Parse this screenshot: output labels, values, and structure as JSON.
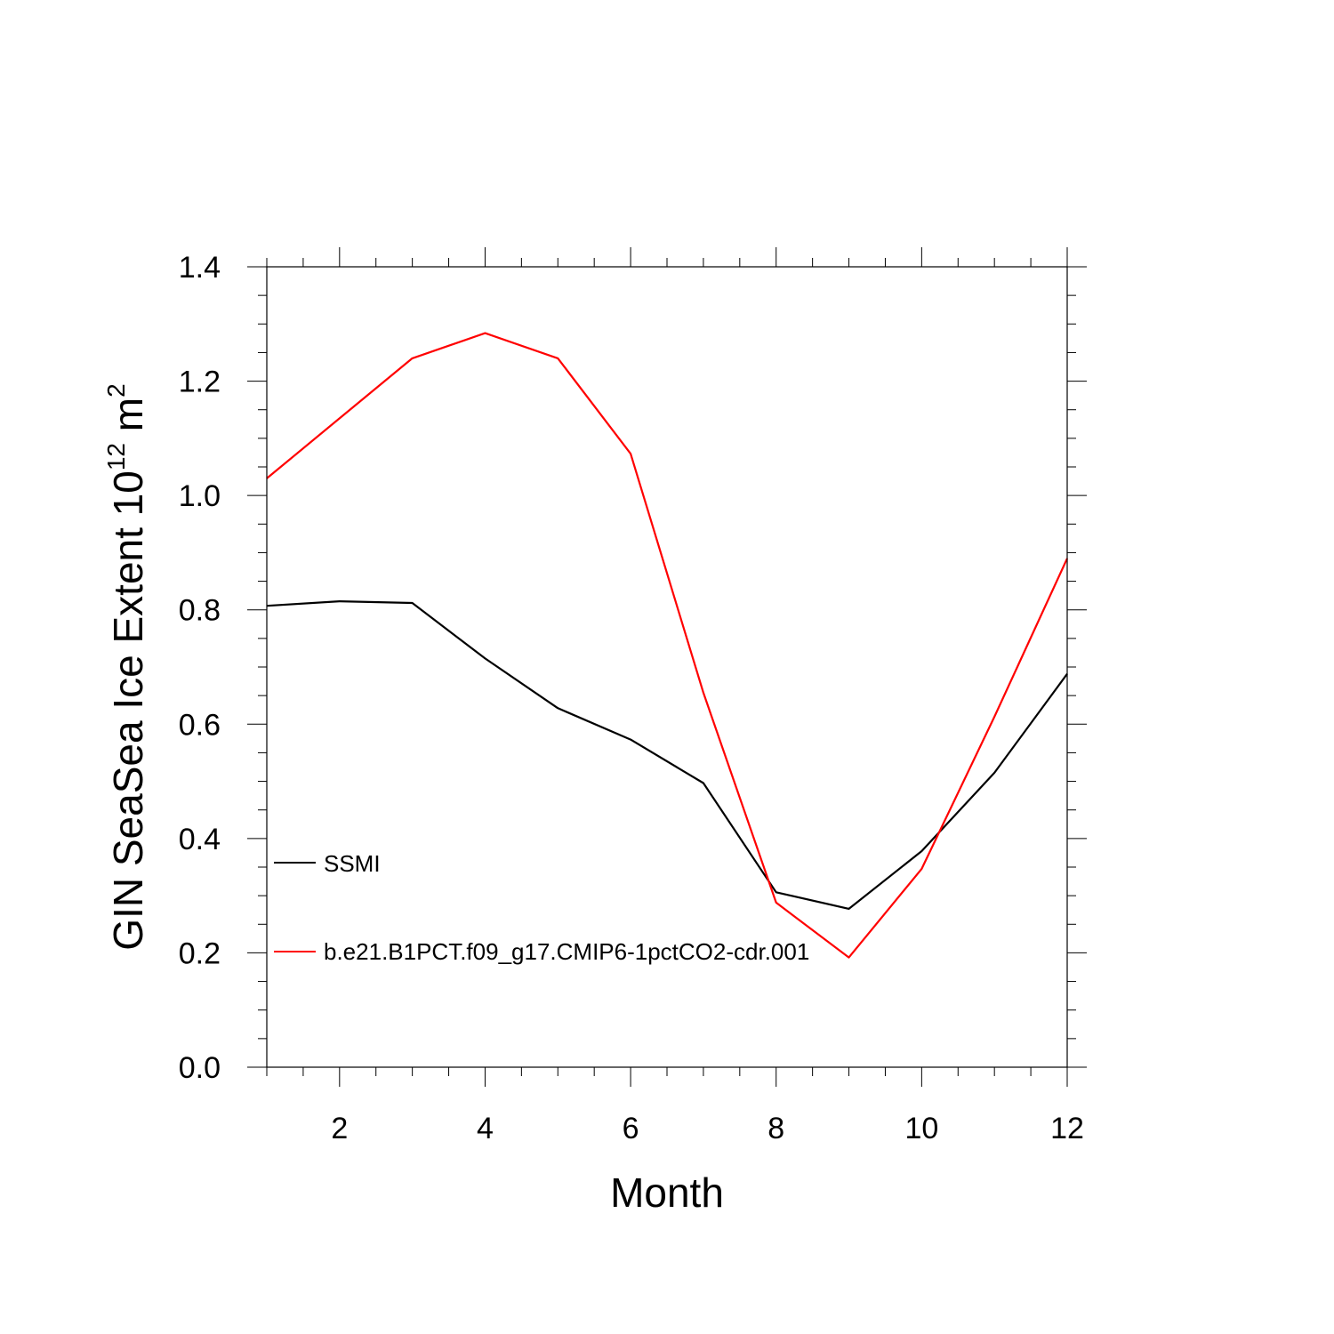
{
  "chart_data": {
    "type": "line",
    "xlabel": "Month",
    "ylabel": {
      "prefix": "GIN SeaSea Ice Extent 10",
      "exponent": "12",
      "unit": " m",
      "unit_exponent": "2"
    },
    "xlim": [
      1,
      12
    ],
    "ylim": [
      0.0,
      1.4
    ],
    "x_ticks": [
      2,
      4,
      6,
      8,
      10,
      12
    ],
    "x_tick_labels": [
      "2",
      "4",
      "6",
      "8",
      "10",
      "12"
    ],
    "y_ticks": [
      0.0,
      0.2,
      0.4,
      0.6,
      0.8,
      1.0,
      1.2,
      1.4
    ],
    "y_tick_labels": [
      "0.0",
      "0.2",
      "0.4",
      "0.6",
      "0.8",
      "1.0",
      "1.2",
      "1.4"
    ],
    "grid": false,
    "legend_position": "left-inside",
    "x": [
      1,
      2,
      3,
      4,
      5,
      6,
      7,
      8,
      9,
      10,
      11,
      12
    ],
    "series": [
      {
        "name": "SSMI",
        "color": "#000000",
        "values": [
          0.807,
          0.815,
          0.812,
          0.715,
          0.628,
          0.573,
          0.497,
          0.306,
          0.277,
          0.378,
          0.515,
          0.688
        ]
      },
      {
        "name": "b.e21.B1PCT.f09_g17.CMIP6-1pctCO2-cdr.001",
        "color": "#ff0000",
        "values": [
          1.03,
          1.135,
          1.24,
          1.284,
          1.24,
          1.073,
          0.655,
          0.288,
          0.192,
          0.347,
          0.613,
          0.89
        ]
      }
    ]
  }
}
